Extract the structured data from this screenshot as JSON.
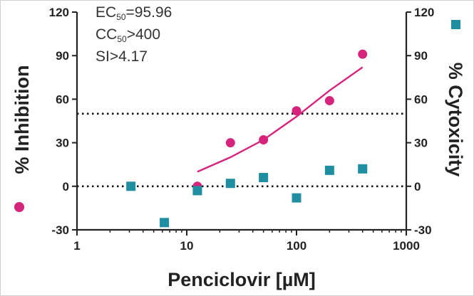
{
  "chart_data": {
    "type": "scatter",
    "xlabel": "Penciclovir [µM]",
    "ylabel_left": "% Inhibition",
    "ylabel_right": "% Cytoxicity",
    "x_scale": "log",
    "xlim": [
      1,
      1000
    ],
    "ylim": [
      -30,
      120
    ],
    "x_ticks": [
      "1",
      "10",
      "100",
      "1000"
    ],
    "y_ticks": [
      "-30",
      "0",
      "30",
      "60",
      "90",
      "120"
    ],
    "reference_lines": [
      50,
      0
    ],
    "annotations": [
      {
        "base": "EC",
        "sub": "50",
        "text": "=95.96"
      },
      {
        "base": "CC",
        "sub": "50",
        "text": ">400"
      },
      {
        "base": "",
        "sub": "",
        "text": "SI>4.17"
      }
    ],
    "series": [
      {
        "marker": "circle",
        "color": "#d6247c",
        "axis": "left",
        "points": [
          {
            "x": 12.5,
            "y": 0
          },
          {
            "x": 25,
            "y": 30
          },
          {
            "x": 50,
            "y": 32
          },
          {
            "x": 100,
            "y": 52
          },
          {
            "x": 200,
            "y": 59
          },
          {
            "x": 400,
            "y": 91
          }
        ],
        "fit": {
          "x": [
            12.5,
            25,
            50,
            100,
            200,
            400
          ],
          "y": [
            10,
            20,
            32,
            48,
            66,
            82
          ]
        }
      },
      {
        "marker": "square",
        "color": "#1f8ea1",
        "axis": "right",
        "points": [
          {
            "x": 3.1,
            "y": 0
          },
          {
            "x": 6.25,
            "y": -25
          },
          {
            "x": 12.5,
            "y": -3
          },
          {
            "x": 25,
            "y": 2
          },
          {
            "x": 50,
            "y": 6
          },
          {
            "x": 100,
            "y": -8
          },
          {
            "x": 200,
            "y": 11
          },
          {
            "x": 400,
            "y": 12
          }
        ]
      }
    ],
    "legend_marker_colors": [
      "#d6247c",
      "#1f8ea1"
    ]
  }
}
